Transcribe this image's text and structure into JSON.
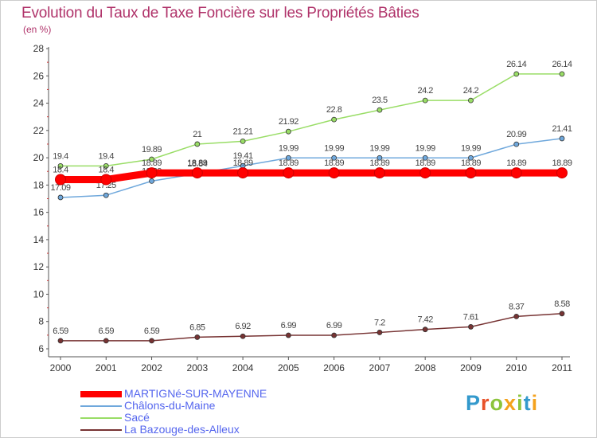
{
  "header": {
    "title": "Evolution du Taux de Taxe Foncière sur les Propriétés Bâties",
    "unit_label": "(en %)"
  },
  "logo": {
    "text": "Proxiti",
    "letter_colors": [
      "#3399cc",
      "#e8522a",
      "#8cc43c",
      "#f4a21d",
      "#8cc43c",
      "#3399cc",
      "#f4a21d"
    ]
  },
  "chart_data": {
    "type": "line",
    "title": "Evolution du Taux de Taxe Foncière sur les Propriétés Bâties",
    "ylabel": "(en %)",
    "xlabel": "",
    "x": [
      "2000",
      "2001",
      "2002",
      "2003",
      "2004",
      "2005",
      "2006",
      "2007",
      "2008",
      "2009",
      "2010",
      "2011"
    ],
    "ylim": [
      6,
      28
    ],
    "yticks": [
      6,
      8,
      10,
      12,
      14,
      16,
      18,
      20,
      22,
      24,
      26,
      28
    ],
    "grid": false,
    "legend_position": "bottom-left",
    "series": [
      {
        "name": "MARTIGNé-SUR-MAYENNE",
        "color": "#ff0000",
        "values": [
          18.4,
          18.4,
          18.89,
          18.89,
          18.89,
          18.89,
          18.89,
          18.89,
          18.89,
          18.89,
          18.89,
          18.89
        ],
        "labels": [
          "18.4",
          "18.4",
          "18.89",
          "18.89",
          "18.89",
          "18.89",
          "18.89",
          "18.89",
          "18.89",
          "18.89",
          "18.89",
          "18.89"
        ]
      },
      {
        "name": "Châlons-du-Maine",
        "color": "#6fa8dc",
        "values": [
          17.09,
          17.25,
          18.29,
          18.84,
          19.41,
          19.99,
          19.99,
          19.99,
          19.99,
          19.99,
          20.99,
          21.41
        ],
        "labels": [
          "17.09",
          "17.25",
          "18.29",
          "18.84",
          "19.41",
          "19.99",
          "19.99",
          "19.99",
          "19.99",
          "19.99",
          "20.99",
          "21.41"
        ]
      },
      {
        "name": "Sacé",
        "color": "#99dd66",
        "values": [
          19.4,
          19.4,
          19.89,
          21,
          21.21,
          21.92,
          22.8,
          23.5,
          24.2,
          24.2,
          26.14,
          26.14
        ],
        "labels": [
          "19.4",
          "19.4",
          "19.89",
          "21",
          "21.21",
          "21.92",
          "22.8",
          "23.5",
          "24.2",
          "24.2",
          "26.14",
          "26.14"
        ]
      },
      {
        "name": "La Bazouge-des-Alleux",
        "color": "#773333",
        "values": [
          6.59,
          6.59,
          6.59,
          6.85,
          6.92,
          6.99,
          6.99,
          7.2,
          7.42,
          7.61,
          8.37,
          8.58
        ],
        "labels": [
          "6.59",
          "6.59",
          "6.59",
          "6.85",
          "6.92",
          "6.99",
          "6.99",
          "7.2",
          "7.42",
          "7.61",
          "8.37",
          "8.58"
        ]
      }
    ]
  }
}
